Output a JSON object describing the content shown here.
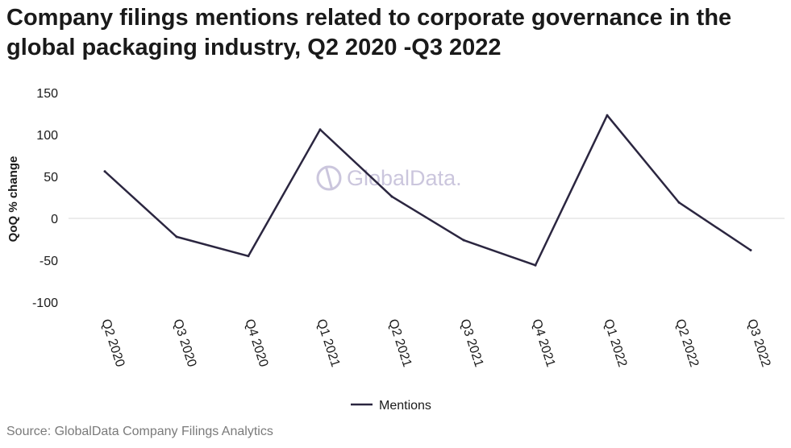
{
  "title": "Company filings mentions related to corporate governance in the global packaging industry, Q2 2020 -Q3 2022",
  "source": "Source: GlobalData Company Filings Analytics",
  "watermark": "GlobalData.",
  "colors": {
    "line": "#2b2640",
    "zero_line": "#d9d9d9",
    "watermark": "#c9c4dc"
  },
  "chart_data": {
    "type": "line",
    "categories": [
      "Q2 2020",
      "Q3 2020",
      "Q4 2020",
      "Q1 2021",
      "Q2 2021",
      "Q3 2021",
      "Q4 2021",
      "Q1 2022",
      "Q2 2022",
      "Q3 2022"
    ],
    "series": [
      {
        "name": "Mentions",
        "values": [
          56,
          -22,
          -45,
          106,
          26,
          -26,
          -56,
          123,
          19,
          -38
        ]
      }
    ],
    "ylabel": "QoQ % change",
    "ylim": [
      -100,
      150
    ],
    "yticks": [
      150,
      100,
      50,
      0,
      -50,
      -100
    ],
    "ytick_labels": [
      "150",
      "100",
      "50",
      "0",
      "-50",
      "-100"
    ],
    "legend": "bottom-center",
    "grid": false,
    "zero_line": true
  }
}
